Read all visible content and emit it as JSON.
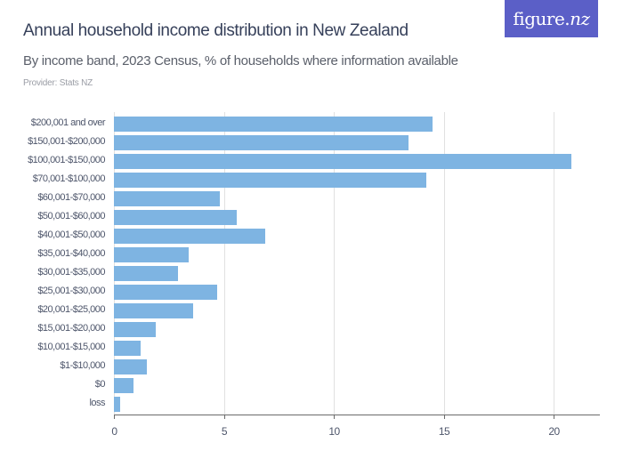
{
  "header": {
    "title": "Annual household income distribution in New Zealand",
    "subtitle": "By income band, 2023 Census, % of households where information available",
    "provider": "Provider: Stats NZ",
    "logo_main": "figure.",
    "logo_suffix": "nz"
  },
  "colors": {
    "bar": "#7eb4e2",
    "logo_bg": "#5b5fc7",
    "title": "#36405a"
  },
  "chart_data": {
    "type": "bar",
    "orientation": "horizontal",
    "title": "Annual household income distribution in New Zealand",
    "subtitle": "By income band, 2023 Census, % of households where information available",
    "xlabel": "",
    "ylabel": "",
    "xlim": [
      0,
      22
    ],
    "xticks": [
      "0",
      "5",
      "10",
      "15",
      "20"
    ],
    "grid": true,
    "legend": "none",
    "categories": [
      "$200,001 and over",
      "$150,001-$200,000",
      "$100,001-$150,000",
      "$70,001-$100,000",
      "$60,001-$70,000",
      "$50,001-$60,000",
      "$40,001-$50,000",
      "$35,001-$40,000",
      "$30,001-$35,000",
      "$25,001-$30,000",
      "$20,001-$25,000",
      "$15,001-$20,000",
      "$10,001-$15,000",
      "$1-$10,000",
      "$0",
      "loss"
    ],
    "values": [
      14.5,
      13.4,
      20.8,
      14.2,
      4.8,
      5.6,
      6.9,
      3.4,
      2.9,
      4.7,
      3.6,
      1.9,
      1.2,
      1.5,
      0.9,
      0.3
    ]
  }
}
